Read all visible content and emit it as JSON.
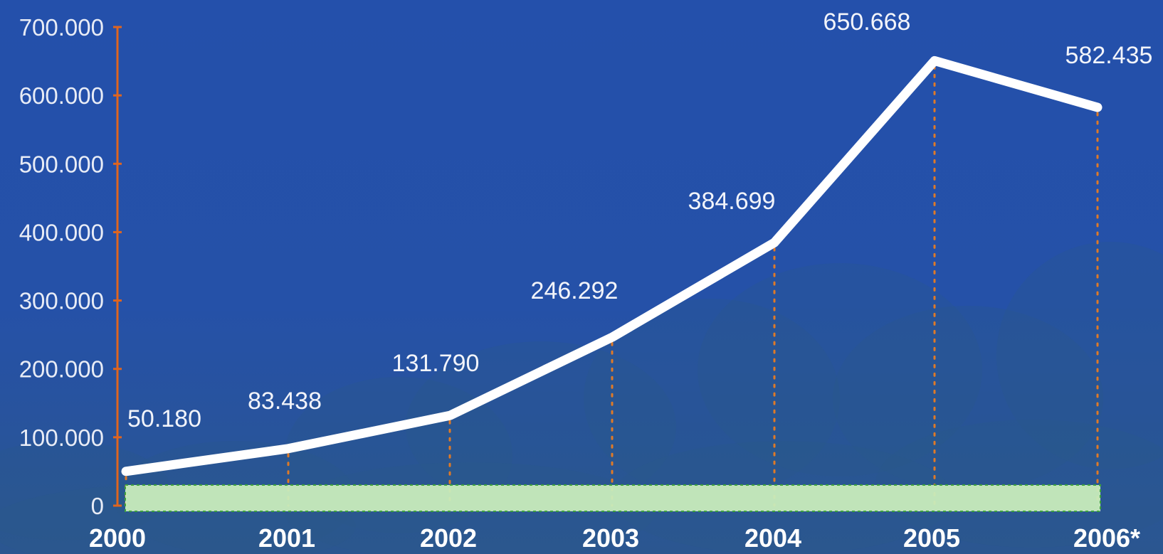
{
  "chart_data": {
    "type": "line",
    "title": "",
    "xlabel": "",
    "ylabel": "",
    "categories": [
      "2000",
      "2001",
      "2002",
      "2003",
      "2004",
      "2005",
      "2006*"
    ],
    "series": [
      {
        "values": [
          50180,
          83438,
          131790,
          246292,
          384699,
          650668,
          582435
        ],
        "data_labels": [
          "50.180",
          "83.438",
          "131.790",
          "246.292",
          "384.699",
          "650.668",
          "582.435"
        ]
      }
    ],
    "ylim": [
      0,
      700000
    ],
    "y_ticks": [
      0,
      100000,
      200000,
      300000,
      400000,
      500000,
      600000,
      700000
    ],
    "y_tick_labels": [
      "0",
      "100.000",
      "200.000",
      "300.000",
      "400.000",
      "500.000",
      "600.000",
      "700.000"
    ],
    "grid": false,
    "legend": "none",
    "colors": {
      "background": "#2450a8",
      "background_lower": "#2a5494",
      "line": "#ffffff",
      "axis": "#e0651e",
      "drop_lines": "#e07a26",
      "baseline_band": "#c9ecbc",
      "baseline_band_border": "#3fa63a"
    }
  }
}
